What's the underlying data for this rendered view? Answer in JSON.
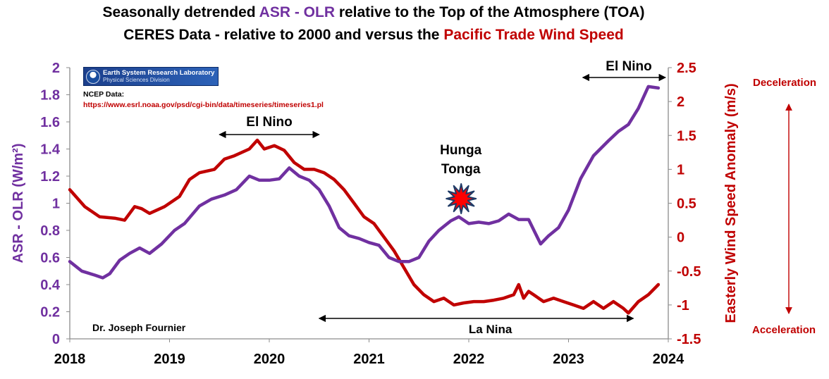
{
  "title": {
    "line1_part1": "Seasonally detrended ",
    "line1_part2": "ASR - OLR",
    "line1_part3": " relative to the Top of the Atmosphere (TOA)",
    "line2_part1": "CERES Data - relative to 2000 and versus the ",
    "line2_part2": "Pacific Trade Wind Speed"
  },
  "source": {
    "logo_title": "Earth System Research Laboratory",
    "logo_subtitle": "Physical Sciences Division",
    "label": "NCEP Data:",
    "url": "https://www.esrl.noaa.gov/psd/cgi-bin/data/timeseries/timeseries1.pl"
  },
  "author": "Dr. Joseph Fournier",
  "side_labels": {
    "top": "Deceleration",
    "bottom": "Acceleration"
  },
  "colors": {
    "asr_olr": "#7030a0",
    "wind": "#c00000",
    "text": "#000000",
    "arrow": "#c00000"
  },
  "chart_data": {
    "type": "line",
    "x_ticks": [
      "2018",
      "2019",
      "2020",
      "2021",
      "2022",
      "2023",
      "2024"
    ],
    "xlim": [
      2018,
      2024
    ],
    "y_left": {
      "label": "ASR - OLR (W/m²)",
      "lim": [
        0,
        2
      ],
      "ticks": [
        "0",
        "0.2",
        "0.4",
        "0.6",
        "0.8",
        "1",
        "1.2",
        "1.4",
        "1.6",
        "1.8",
        "2"
      ]
    },
    "y_right": {
      "label": "Easterly Wind Speed Anomaly (m/s)",
      "lim": [
        -1.5,
        2.5
      ],
      "ticks": [
        "-1.5",
        "-1",
        "-0.5",
        "0",
        "0.5",
        "1",
        "1.5",
        "2",
        "2.5"
      ]
    },
    "series": [
      {
        "axis": "left",
        "x": [
          2018.0,
          2018.12,
          2018.25,
          2018.33,
          2018.4,
          2018.5,
          2018.6,
          2018.7,
          2018.8,
          2018.92,
          2019.05,
          2019.15,
          2019.3,
          2019.42,
          2019.55,
          2019.67,
          2019.8,
          2019.9,
          2020.0,
          2020.1,
          2020.2,
          2020.3,
          2020.4,
          2020.5,
          2020.6,
          2020.7,
          2020.8,
          2020.9,
          2021.0,
          2021.1,
          2021.2,
          2021.3,
          2021.4,
          2021.5,
          2021.6,
          2021.7,
          2021.82,
          2021.9,
          2022.0,
          2022.1,
          2022.2,
          2022.3,
          2022.4,
          2022.5,
          2022.6,
          2022.72,
          2022.8,
          2022.9,
          2023.0,
          2023.12,
          2023.25,
          2023.4,
          2023.5,
          2023.6,
          2023.7,
          2023.8,
          2023.9
        ],
        "y": [
          0.57,
          0.5,
          0.47,
          0.45,
          0.48,
          0.58,
          0.63,
          0.67,
          0.63,
          0.7,
          0.8,
          0.85,
          0.98,
          1.03,
          1.06,
          1.1,
          1.2,
          1.17,
          1.17,
          1.18,
          1.26,
          1.2,
          1.17,
          1.1,
          0.98,
          0.82,
          0.76,
          0.74,
          0.71,
          0.69,
          0.6,
          0.57,
          0.57,
          0.6,
          0.72,
          0.8,
          0.87,
          0.9,
          0.85,
          0.86,
          0.85,
          0.87,
          0.92,
          0.88,
          0.88,
          0.7,
          0.76,
          0.82,
          0.95,
          1.18,
          1.35,
          1.46,
          1.53,
          1.58,
          1.7,
          1.86,
          1.85
        ]
      },
      {
        "axis": "right",
        "x": [
          2018.0,
          2018.15,
          2018.3,
          2018.45,
          2018.55,
          2018.65,
          2018.72,
          2018.8,
          2018.95,
          2019.1,
          2019.2,
          2019.3,
          2019.45,
          2019.55,
          2019.65,
          2019.8,
          2019.88,
          2019.95,
          2020.05,
          2020.15,
          2020.25,
          2020.35,
          2020.45,
          2020.55,
          2020.65,
          2020.75,
          2020.85,
          2020.95,
          2021.05,
          2021.15,
          2021.25,
          2021.35,
          2021.45,
          2021.55,
          2021.65,
          2021.75,
          2021.85,
          2021.95,
          2022.05,
          2022.15,
          2022.25,
          2022.35,
          2022.45,
          2022.5,
          2022.55,
          2022.6,
          2022.65,
          2022.75,
          2022.85,
          2022.95,
          2023.05,
          2023.15,
          2023.25,
          2023.35,
          2023.45,
          2023.55,
          2023.6,
          2023.7,
          2023.8,
          2023.9
        ],
        "y": [
          0.7,
          0.45,
          0.3,
          0.28,
          0.25,
          0.45,
          0.42,
          0.35,
          0.45,
          0.6,
          0.85,
          0.95,
          1.0,
          1.15,
          1.2,
          1.3,
          1.43,
          1.3,
          1.35,
          1.28,
          1.1,
          1.0,
          1.0,
          0.95,
          0.85,
          0.7,
          0.5,
          0.3,
          0.2,
          0.0,
          -0.2,
          -0.45,
          -0.7,
          -0.85,
          -0.95,
          -0.9,
          -1.0,
          -0.97,
          -0.95,
          -0.95,
          -0.93,
          -0.9,
          -0.85,
          -0.7,
          -0.9,
          -0.8,
          -0.85,
          -0.95,
          -0.9,
          -0.95,
          -1.0,
          -1.05,
          -0.95,
          -1.05,
          -0.95,
          -1.05,
          -1.12,
          -0.95,
          -0.85,
          -0.7
        ]
      }
    ],
    "annotations": [
      {
        "text": "El Nino",
        "x_from": 2019.5,
        "x_to": 2020.5
      },
      {
        "text": "El Nino",
        "x_from": 2023.15,
        "x_to": 2024.0
      },
      {
        "text": "La Nina",
        "x_from": 2020.5,
        "x_to": 2023.65
      },
      {
        "text": "Hunga Tonga",
        "lines": [
          "Hunga",
          "Tonga"
        ],
        "x": 2021.92
      }
    ]
  }
}
